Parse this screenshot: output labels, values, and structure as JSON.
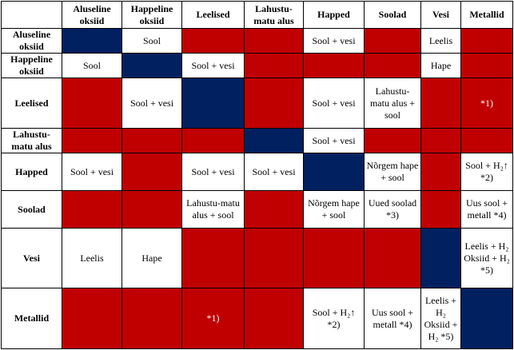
{
  "columns": [
    "Aluseline oksiid",
    "Happeline oksiid",
    "Leelised",
    "Lahustu-matu alus",
    "Happed",
    "Soolad",
    "Vesi",
    "Metallid"
  ],
  "rows": [
    "Aluseline oksiid",
    "Happeline oksiid",
    "Leelised",
    "Lahustu-matu alus",
    "Happed",
    "Soolad",
    "Vesi",
    "Metallid"
  ],
  "cells": [
    [
      "",
      "Sool",
      "",
      "",
      "Sool + vesi",
      "",
      "Leelis",
      ""
    ],
    [
      "Sool",
      "",
      "Sool + vesi",
      "",
      "",
      "",
      "Hape",
      ""
    ],
    [
      "",
      "Sool + vesi",
      "",
      "",
      "Sool + vesi",
      "Lahustu-matu alus + sool",
      "",
      "*1)"
    ],
    [
      "",
      "",
      "",
      "",
      "Sool + vesi",
      "",
      "",
      ""
    ],
    [
      "Sool + vesi",
      "",
      "Sool + vesi",
      "Sool + vesi",
      "",
      "Nõrgem hape + sool",
      "",
      "Sool + H₂↑ *2)"
    ],
    [
      "",
      "",
      "Lahustu-matu alus + sool",
      "",
      "Nõrgem hape + sool",
      "Uued soolad *3)",
      "",
      "Uus sool + metall *4)"
    ],
    [
      "Leelis",
      "Hape",
      "",
      "",
      "",
      "",
      "",
      "Leelis + H₂ Oksiid + H₂ *5)"
    ],
    [
      "",
      "",
      "*1)",
      "",
      "Sool + H₂↑ *2)",
      "Uus sool + metall *4)",
      "Leelis + H₂ Oksiid + H₂ *5)",
      ""
    ]
  ],
  "colors": {
    "red": "#c00000",
    "navy": "#002060",
    "white": "#ffffff"
  }
}
